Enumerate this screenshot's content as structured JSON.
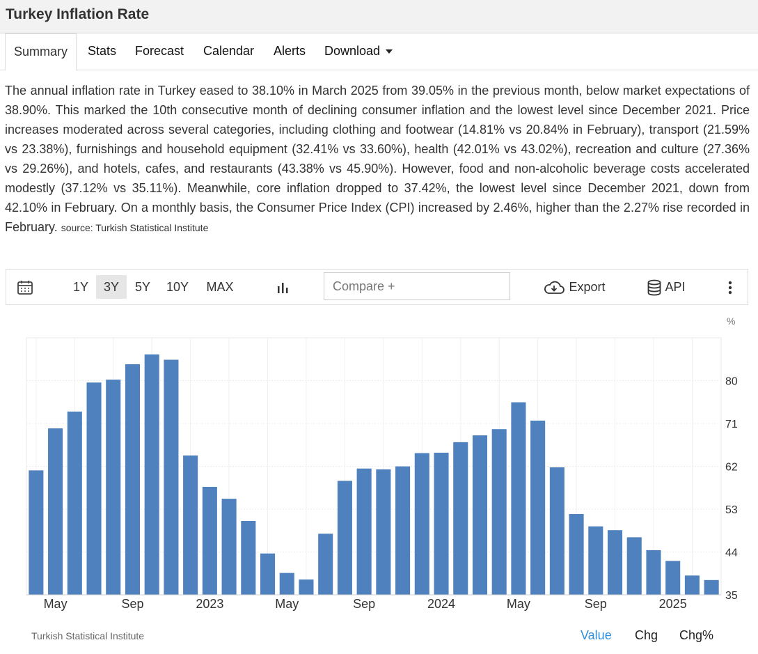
{
  "page_title": "Turkey Inflation Rate",
  "tabs": [
    "Summary",
    "Stats",
    "Forecast",
    "Calendar",
    "Alerts",
    "Download"
  ],
  "description": "The annual inflation rate in Turkey eased to 38.10% in March 2025 from 39.05% in the previous month, below market expectations of 38.90%. This marked the 10th consecutive month of declining consumer inflation and the lowest level since December 2021. Price increases moderated across several categories, including clothing and footwear (14.81% vs 20.84% in February), transport (21.59% vs 23.38%), furnishings and household equipment (32.41% vs 33.60%), health (42.01% vs 43.02%), recreation and culture (27.36% vs 29.26%), and hotels, cafes, and restaurants (43.38% vs 45.90%). However, food and non-alcoholic beverage costs accelerated modestly (37.12% vs 35.11%). Meanwhile, core inflation dropped to 37.42%, the lowest level since December 2021, down from 42.10% in February. On a monthly basis, the Consumer Price Index (CPI) increased by 2.46%, higher than the 2.27% rise recorded in February.",
  "source_text": "source: Turkish Statistical Institute",
  "toolbar": {
    "ranges": [
      "1Y",
      "3Y",
      "5Y",
      "10Y",
      "MAX"
    ],
    "selected_range": "3Y",
    "compare_placeholder": "Compare +",
    "export_label": "Export",
    "api_label": "API"
  },
  "chart_data": {
    "type": "bar",
    "unit": "%",
    "x": [
      "2022-04",
      "2022-05",
      "2022-06",
      "2022-07",
      "2022-08",
      "2022-09",
      "2022-10",
      "2022-11",
      "2022-12",
      "2023-01",
      "2023-02",
      "2023-03",
      "2023-04",
      "2023-05",
      "2023-06",
      "2023-07",
      "2023-08",
      "2023-09",
      "2023-10",
      "2023-11",
      "2023-12",
      "2024-01",
      "2024-02",
      "2024-03",
      "2024-04",
      "2024-05",
      "2024-06",
      "2024-07",
      "2024-08",
      "2024-09",
      "2024-10",
      "2024-11",
      "2024-12",
      "2025-01",
      "2025-02",
      "2025-03"
    ],
    "values": [
      61.14,
      69.97,
      73.5,
      79.6,
      80.21,
      83.45,
      85.51,
      84.39,
      64.27,
      57.68,
      55.18,
      50.51,
      43.68,
      39.59,
      38.21,
      47.83,
      58.94,
      61.53,
      61.36,
      61.98,
      64.77,
      64.86,
      67.07,
      68.5,
      69.8,
      75.45,
      71.6,
      61.78,
      51.97,
      49.38,
      48.58,
      47.09,
      44.38,
      42.12,
      39.05,
      38.1
    ],
    "x_tick_labels": [
      {
        "label": "May",
        "x": "2022-05"
      },
      {
        "label": "Sep",
        "x": "2022-09"
      },
      {
        "label": "2023",
        "x": "2023-01"
      },
      {
        "label": "May",
        "x": "2023-05"
      },
      {
        "label": "Sep",
        "x": "2023-09"
      },
      {
        "label": "2024",
        "x": "2024-01"
      },
      {
        "label": "May",
        "x": "2024-05"
      },
      {
        "label": "Sep",
        "x": "2024-09"
      },
      {
        "label": "2025",
        "x": "2025-01"
      }
    ],
    "y_ticks": [
      35,
      44,
      53,
      62,
      71,
      80
    ],
    "ylim": [
      35,
      89
    ],
    "bar_color": "#4e81bd",
    "grid": true,
    "y_axis_side": "right"
  },
  "footer": {
    "source_label": "Turkish Statistical Institute",
    "views": [
      "Value",
      "Chg",
      "Chg%"
    ],
    "active_view": "Value",
    "active_color": "#2f8fdb"
  }
}
